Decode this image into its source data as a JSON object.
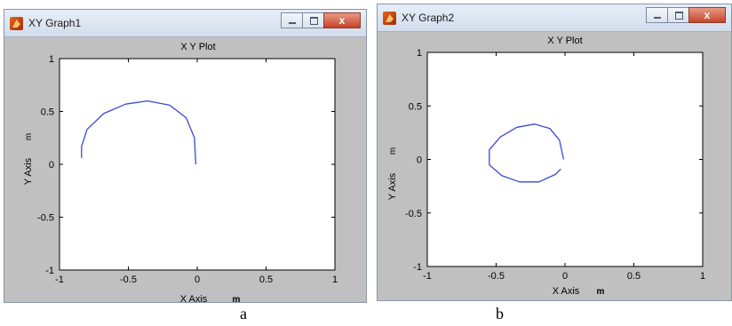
{
  "windows": [
    {
      "title": "XY Graph1",
      "controls": {
        "close": "x"
      },
      "plot_title": "X Y Plot",
      "xlabel": "X Axis",
      "ylabel": "Y Axis",
      "x_unit": "m",
      "y_unit": "m"
    },
    {
      "title": "XY Graph2",
      "controls": {
        "close": "x"
      },
      "plot_title": "X Y Plot",
      "xlabel": "X Axis",
      "ylabel": "Y Axis",
      "x_unit": "m",
      "y_unit": "m"
    }
  ],
  "captions": {
    "a": "a",
    "b": "b"
  },
  "chart_data": [
    {
      "type": "line",
      "title": "X Y Plot",
      "xlabel": "X Axis",
      "ylabel": "Y Axis",
      "xlim": [
        -1,
        1
      ],
      "ylim": [
        -1,
        1
      ],
      "xticks": [
        "-1",
        "-0.5",
        "0",
        "0.5",
        "1"
      ],
      "yticks": [
        "1",
        "0.5",
        "0",
        "-0.5",
        "-1"
      ],
      "grid": false,
      "line_color": "#3a49d6",
      "series": [
        {
          "x": [
            -0.84,
            -0.84,
            -0.8,
            -0.68,
            -0.52,
            -0.36,
            -0.2,
            -0.08,
            -0.02,
            -0.01
          ],
          "y": [
            0.06,
            0.17,
            0.33,
            0.48,
            0.57,
            0.6,
            0.56,
            0.44,
            0.25,
            0.0
          ]
        }
      ]
    },
    {
      "type": "line",
      "title": "X Y Plot",
      "xlabel": "X Axis",
      "ylabel": "Y Axis",
      "xlim": [
        -1,
        1
      ],
      "ylim": [
        -1,
        1
      ],
      "xticks": [
        "-1",
        "-0.5",
        "0",
        "0.5",
        "1"
      ],
      "yticks": [
        "1",
        "0.5",
        "0",
        "-0.5",
        "-1"
      ],
      "grid": false,
      "line_color": "#3a49d6",
      "series": [
        {
          "x": [
            -0.01,
            -0.04,
            -0.11,
            -0.22,
            -0.35,
            -0.47,
            -0.55,
            -0.55,
            -0.46,
            -0.33,
            -0.19,
            -0.07,
            -0.03
          ],
          "y": [
            0.0,
            0.18,
            0.29,
            0.33,
            0.3,
            0.21,
            0.09,
            -0.05,
            -0.15,
            -0.21,
            -0.21,
            -0.14,
            -0.09
          ]
        }
      ]
    }
  ]
}
